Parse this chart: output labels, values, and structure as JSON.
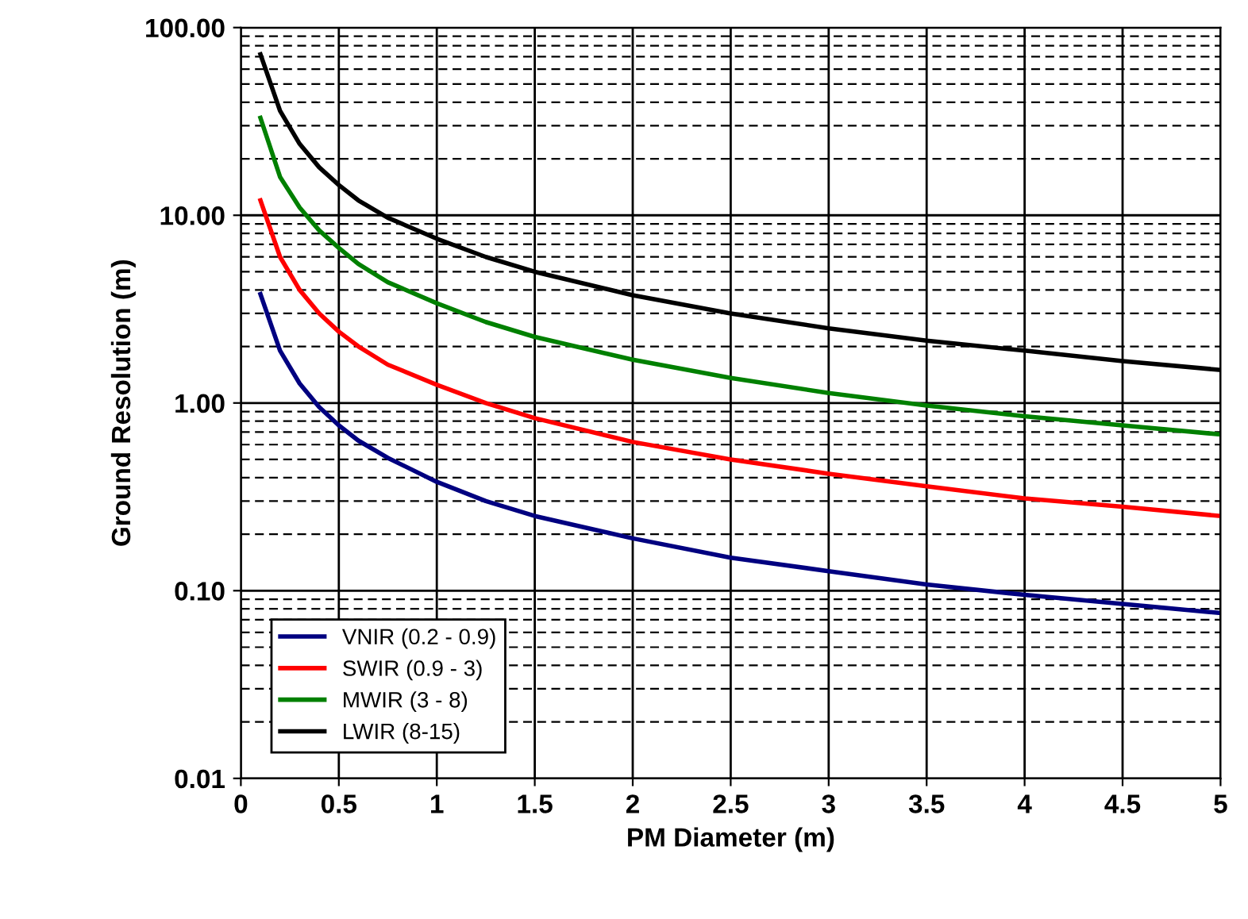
{
  "chart_data": {
    "type": "line",
    "xlabel": "PM Diameter (m)",
    "ylabel": "Ground Resolution (m)",
    "log": "y",
    "grid": true,
    "legend": "bottom left",
    "marker": "none",
    "line_style": "solid",
    "x": [
      0.1,
      0.2,
      0.3,
      0.4,
      0.5,
      0.6,
      0.75,
      1,
      1.25,
      1.5,
      2,
      2.5,
      3,
      3.5,
      4,
      4.5,
      5
    ],
    "xlim": [
      0,
      5
    ],
    "xticks": [
      0,
      0.5,
      1,
      1.5,
      2,
      2.5,
      3,
      3.5,
      4,
      4.5,
      5
    ],
    "ylim": [
      0.01,
      100
    ],
    "yticks": [
      {
        "value": 0.01,
        "label": "0.01"
      },
      {
        "value": 0.1,
        "label": "0.10"
      },
      {
        "value": 1,
        "label": "1.00"
      },
      {
        "value": 10,
        "label": "10.00"
      },
      {
        "value": 100,
        "label": "100.00"
      }
    ],
    "series": [
      {
        "name": "VNIR (0.2 - 0.9)",
        "color": "#000080",
        "values": [
          3.8,
          1.9,
          1.27,
          0.95,
          0.76,
          0.63,
          0.51,
          0.38,
          0.3,
          0.25,
          0.19,
          0.15,
          0.127,
          0.108,
          0.095,
          0.085,
          0.076
        ]
      },
      {
        "name": "SWIR (0.9 - 3)",
        "color": "#ff0000",
        "values": [
          12,
          6,
          4,
          3,
          2.4,
          2,
          1.6,
          1.25,
          1.0,
          0.83,
          0.62,
          0.5,
          0.42,
          0.36,
          0.31,
          0.28,
          0.25
        ]
      },
      {
        "name": "MWIR (3 - 8)",
        "color": "#008000",
        "values": [
          33,
          16,
          11,
          8.3,
          6.7,
          5.5,
          4.4,
          3.4,
          2.7,
          2.25,
          1.7,
          1.36,
          1.13,
          0.97,
          0.85,
          0.76,
          0.68
        ]
      },
      {
        "name": "LWIR (8-15)",
        "color": "#000000",
        "values": [
          72,
          36,
          24,
          18,
          14.5,
          12,
          9.7,
          7.5,
          6,
          5,
          3.75,
          3,
          2.5,
          2.15,
          1.9,
          1.67,
          1.5
        ]
      }
    ]
  }
}
